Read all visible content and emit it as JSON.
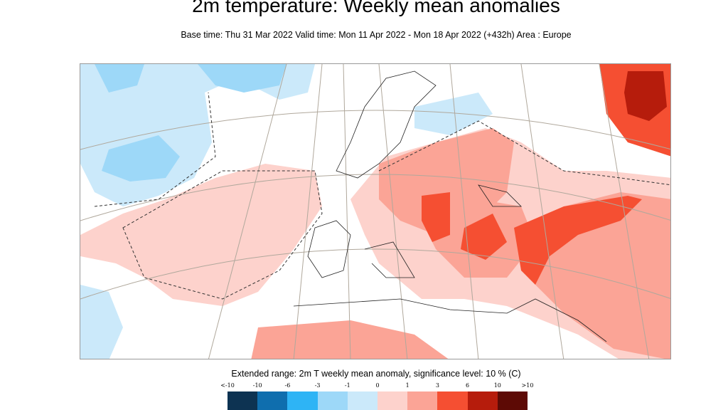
{
  "title": "2m temperature: Weekly mean anomalies",
  "subtitle": "Base time: Thu 31 Mar 2022 Valid time: Mon 11 Apr 2022 - Mon 18 Apr 2022 (+432h) Area : Europe",
  "legend": {
    "title": "Extended range: 2m T weekly mean anomaly, significance level: 10 % (C)",
    "ticks": [
      "<-10",
      "-10",
      "-6",
      "-3",
      "-1",
      "0",
      "1",
      "3",
      "6",
      "10",
      ">10"
    ],
    "colors": [
      "#0d3352",
      "#0f6eae",
      "#2eb4f5",
      "#9dd8f8",
      "#cbe9fa",
      "#fdd2cc",
      "#fba496",
      "#f54f32",
      "#b61c0c",
      "#5d0a05"
    ]
  },
  "map_region": "Europe"
}
